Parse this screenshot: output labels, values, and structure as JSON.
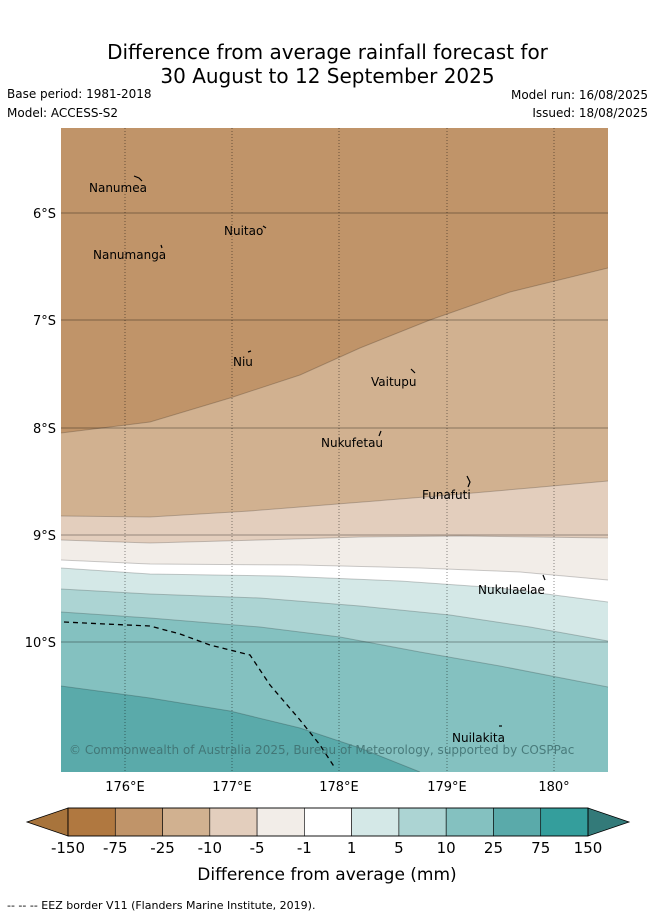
{
  "title": {
    "line1": "Difference from average rainfall forecast for",
    "line2": "30 August to 12 September 2025"
  },
  "header": {
    "base_period": "Base period: 1981-2018",
    "model": "Model: ACCESS-S2",
    "model_run": "Model run: 16/08/2025",
    "issued": "Issued: 18/08/2025"
  },
  "map": {
    "lat_labels": [
      "6°S",
      "7°S",
      "8°S",
      "9°S",
      "10°S"
    ],
    "lon_labels": [
      "176°E",
      "177°E",
      "178°E",
      "179°E",
      "180°"
    ],
    "places": [
      "Nanumea",
      "Nuitao",
      "Nanumanga",
      "Niu",
      "Vaitupu",
      "Nukufetau",
      "Funafuti",
      "Nukulaelae",
      "Nuilakita"
    ],
    "credit": "© Commonwealth of Australia 2025, Bureau of Meteorology, supported by COSPPac"
  },
  "legend": {
    "ticks": [
      "-150",
      "-75",
      "-25",
      "-10",
      "-5",
      "-1",
      "1",
      "5",
      "10",
      "25",
      "75",
      "150"
    ],
    "colors": [
      "#b07840",
      "#c09469",
      "#d1b190",
      "#e3cebd",
      "#f2ede8",
      "#ffffff",
      "#d4e8e7",
      "#acd4d3",
      "#84c1c0",
      "#5aaaaa",
      "#349e9c"
    ],
    "end_low": "#a8743c",
    "end_high": "#337a79",
    "label": "Difference from average (mm)"
  },
  "footnote": "-- -- -- EEZ border V11 (Flanders Marine Institute, 2019)."
}
